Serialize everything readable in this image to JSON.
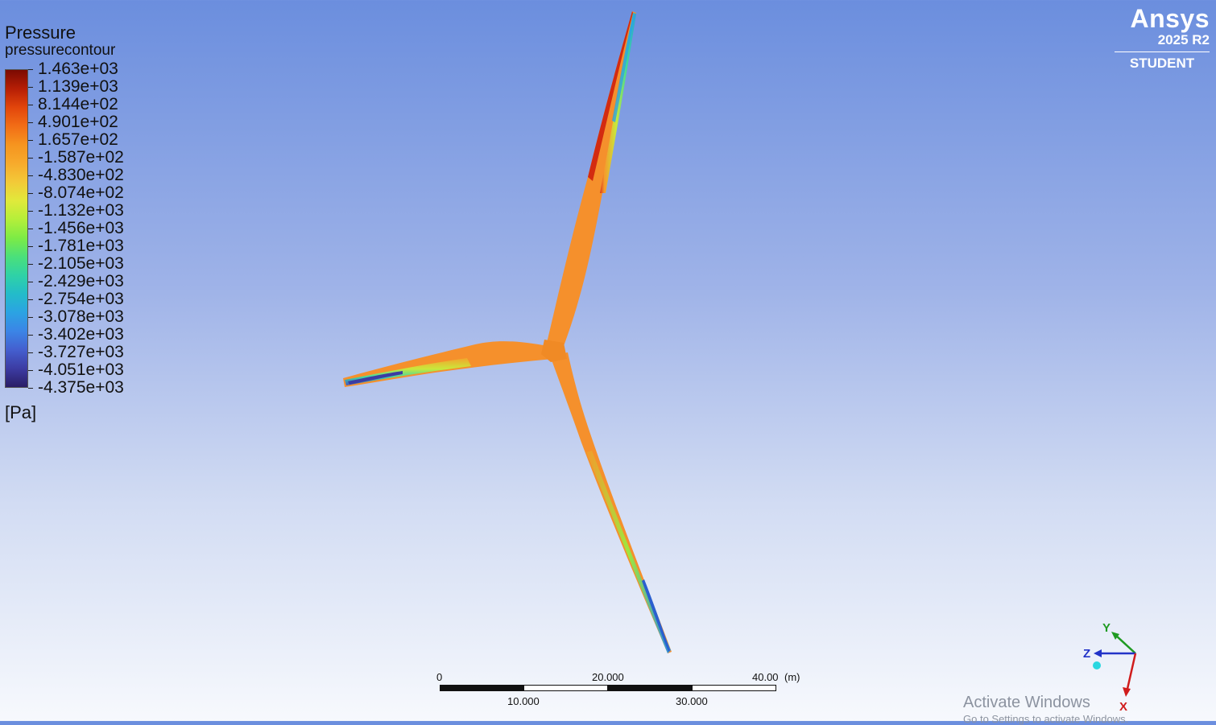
{
  "legend": {
    "variable": "Pressure",
    "name": "pressurecontour",
    "unit": "[Pa]",
    "ticks": [
      "1.463e+03",
      "1.139e+03",
      "8.144e+02",
      "4.901e+02",
      "1.657e+02",
      "-1.587e+02",
      "-4.830e+02",
      "-8.074e+02",
      "-1.132e+03",
      "-1.456e+03",
      "-1.781e+03",
      "-2.105e+03",
      "-2.429e+03",
      "-2.754e+03",
      "-3.078e+03",
      "-3.402e+03",
      "-3.727e+03",
      "-4.051e+03",
      "-4.375e+03"
    ],
    "colors": [
      "#7b0a02",
      "#b61e05",
      "#e2450b",
      "#f26d16",
      "#f6941f",
      "#f7aa2c",
      "#f3c938",
      "#e1e93b",
      "#b5ef3a",
      "#7deb45",
      "#4be07a",
      "#2fd2a6",
      "#23bcc9",
      "#2ba3e3",
      "#3b85e6",
      "#445fcf",
      "#3c3ca3",
      "#2a1d66"
    ]
  },
  "logo": {
    "brand": "Ansys",
    "version": "2025 R2",
    "edition": "STUDENT"
  },
  "scale": {
    "top_labels": [
      "0",
      "20.000",
      "40.00"
    ],
    "bottom_labels": [
      "10.000",
      "30.000"
    ],
    "unit": "(m)"
  },
  "triad": {
    "y": "Y",
    "z": "Z",
    "x": "X"
  },
  "watermark": {
    "line1": "Activate Windows",
    "line2": "Go to Settings to activate Windows."
  },
  "colors": {
    "blade_base": "#f5902c",
    "background_top": "#6b8ede",
    "background_bottom": "#f7f9fd"
  }
}
